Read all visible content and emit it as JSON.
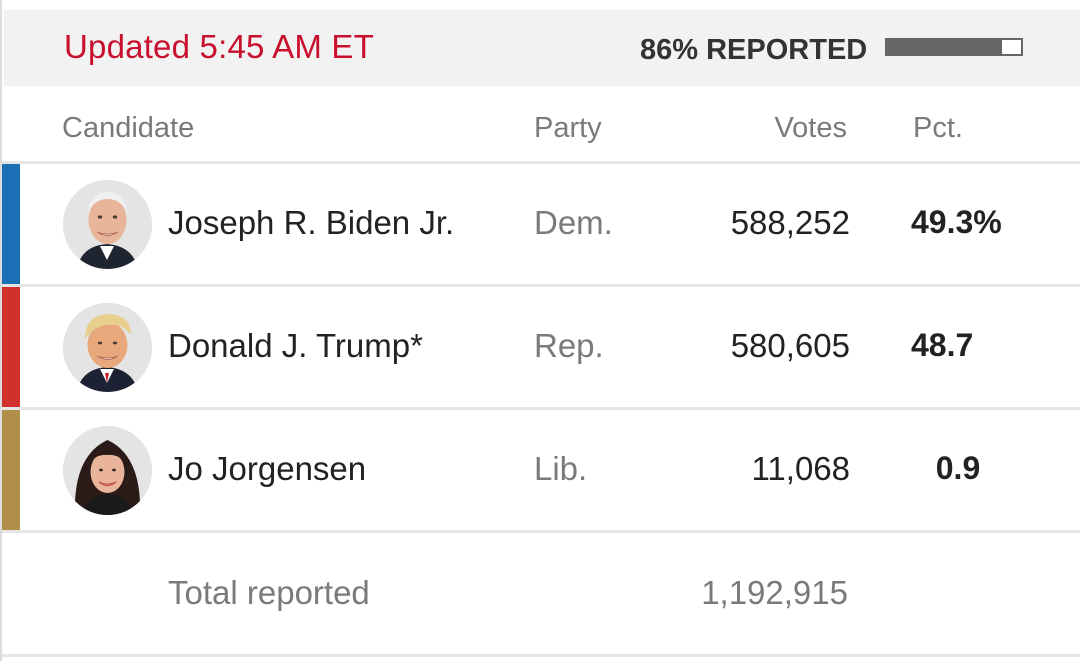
{
  "header": {
    "updated_text": "Updated 5:45 AM ET",
    "reported_text": "86% REPORTED",
    "reported_fraction": 0.86,
    "updated_color": "#c8102e"
  },
  "columns": {
    "candidate": "Candidate",
    "party": "Party",
    "votes": "Votes",
    "pct": "Pct."
  },
  "candidates": [
    {
      "name": "Joseph R. Biden Jr.",
      "party": "Dem.",
      "votes": "588,252",
      "pct": "49.3%",
      "party_color": "#1a6fb5",
      "avatar": "biden-photo"
    },
    {
      "name": "Donald J. Trump*",
      "party": "Rep.",
      "votes": "580,605",
      "pct": "48.7",
      "party_color": "#d0312d",
      "avatar": "trump-photo"
    },
    {
      "name": "Jo Jorgensen",
      "party": "Lib.",
      "votes": "11,068",
      "pct": "0.9",
      "party_color": "#b09048",
      "avatar": "jorgensen-photo"
    }
  ],
  "total": {
    "label": "Total reported",
    "votes": "1,192,915"
  }
}
